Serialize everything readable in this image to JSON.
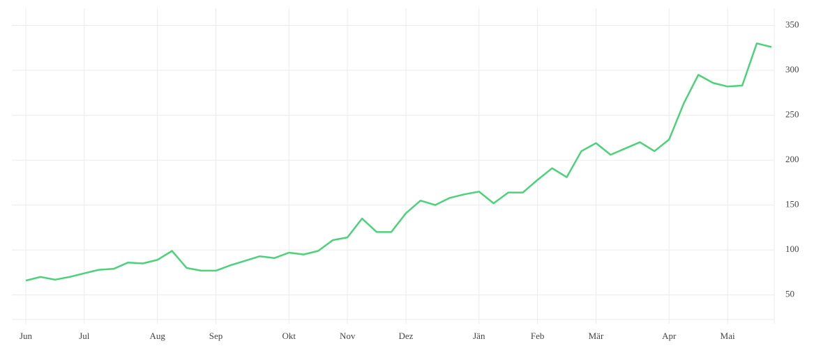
{
  "chart_data": {
    "type": "line",
    "categories": [
      "Jun",
      null,
      null,
      null,
      "Jul",
      null,
      null,
      null,
      null,
      "Aug",
      null,
      null,
      null,
      "Sep",
      null,
      null,
      null,
      null,
      "Okt",
      null,
      null,
      null,
      "Nov",
      null,
      null,
      null,
      "Dez",
      null,
      null,
      null,
      null,
      "Jän",
      null,
      null,
      null,
      "Feb",
      null,
      null,
      null,
      "Mär",
      null,
      null,
      null,
      null,
      "Apr",
      null,
      null,
      null,
      "Mai",
      null,
      null,
      null
    ],
    "values": [
      66,
      70,
      67,
      70,
      74,
      78,
      79,
      86,
      85,
      89,
      99,
      80,
      77,
      77,
      83,
      88,
      93,
      91,
      97,
      95,
      99,
      111,
      114,
      135,
      120,
      120,
      141,
      155,
      150,
      158,
      162,
      165,
      152,
      164,
      164,
      178,
      191,
      181,
      210,
      219,
      206,
      213,
      220,
      210,
      223,
      263,
      295,
      286,
      282,
      283,
      330,
      326
    ],
    "color": "#4cd27a",
    "ylim": [
      18,
      369
    ],
    "yticks": [
      50,
      100,
      150,
      200,
      250,
      300,
      350
    ],
    "grid": true,
    "y_axis_side": "right"
  }
}
